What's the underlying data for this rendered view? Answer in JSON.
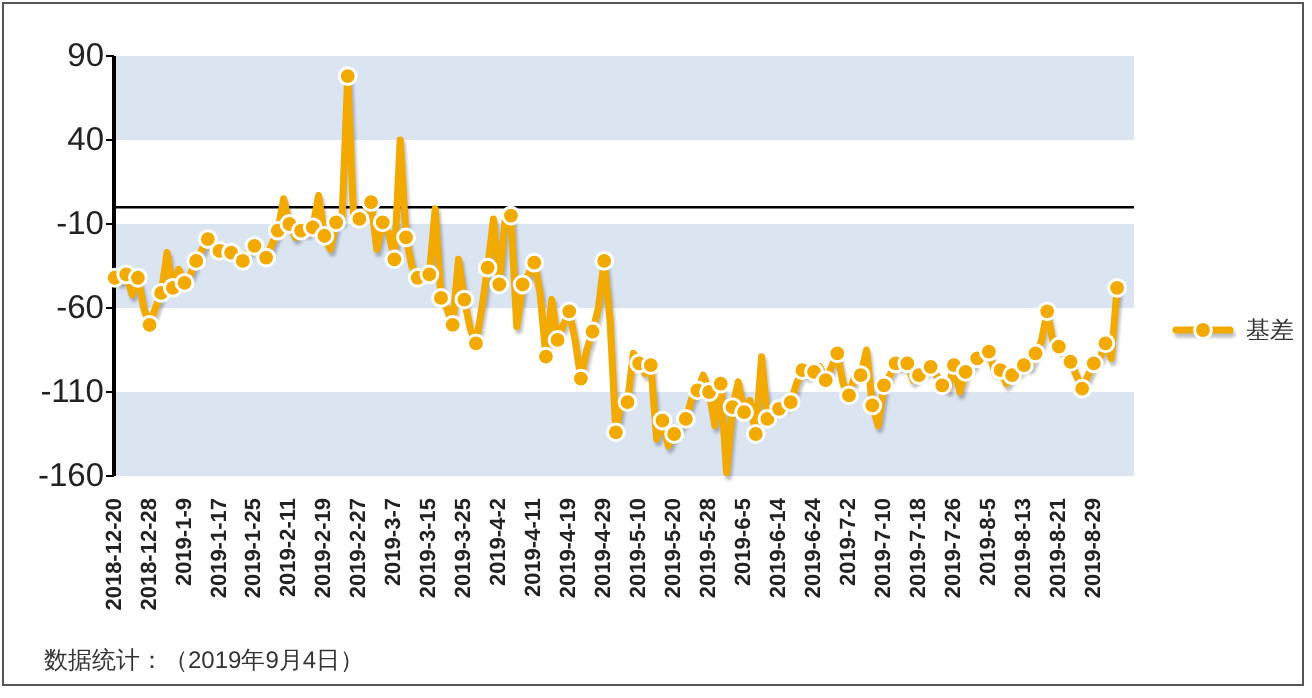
{
  "chart_data": {
    "type": "line",
    "categories": [
      "2018-12-20",
      null,
      null,
      null,
      null,
      null,
      "2018-12-28",
      null,
      null,
      null,
      null,
      null,
      "2019-1-9",
      null,
      null,
      null,
      null,
      null,
      "2019-1-17",
      null,
      null,
      null,
      null,
      null,
      "2019-1-25",
      null,
      null,
      null,
      null,
      null,
      "2019-2-11",
      null,
      null,
      null,
      null,
      null,
      "2019-2-19",
      null,
      null,
      null,
      null,
      null,
      "2019-2-27",
      null,
      null,
      null,
      null,
      null,
      "2019-3-7",
      null,
      null,
      null,
      null,
      null,
      "2019-3-15",
      null,
      null,
      null,
      null,
      null,
      "2019-3-25",
      null,
      null,
      null,
      null,
      null,
      "2019-4-2",
      null,
      null,
      null,
      null,
      null,
      "2019-4-11",
      null,
      null,
      null,
      null,
      null,
      "2019-4-19",
      null,
      null,
      null,
      null,
      null,
      "2019-4-29",
      null,
      null,
      null,
      null,
      null,
      "2019-5-10",
      null,
      null,
      null,
      null,
      null,
      "2019-5-20",
      null,
      null,
      null,
      null,
      null,
      "2019-5-28",
      null,
      null,
      null,
      null,
      null,
      "2019-6-5",
      null,
      null,
      null,
      null,
      null,
      "2019-6-14",
      null,
      null,
      null,
      null,
      null,
      "2019-6-24",
      null,
      null,
      null,
      null,
      null,
      "2019-7-2",
      null,
      null,
      null,
      null,
      null,
      "2019-7-10",
      null,
      null,
      null,
      null,
      null,
      "2019-7-18",
      null,
      null,
      null,
      null,
      null,
      "2019-7-26",
      null,
      null,
      null,
      null,
      null,
      "2019-8-5",
      null,
      null,
      null,
      null,
      null,
      "2019-8-13",
      null,
      null,
      null,
      null,
      null,
      "2019-8-21",
      null,
      null,
      null,
      null,
      null,
      "2019-8-29",
      null,
      null,
      null,
      null
    ],
    "series": [
      {
        "name": "基差",
        "color": "#f2a900",
        "values": [
          -42,
          -44,
          -40,
          -52,
          -42,
          -60,
          -70,
          -60,
          -51,
          -27,
          -48,
          -37,
          -45,
          -40,
          -32,
          -25,
          -19,
          -22,
          -26,
          -24,
          -27,
          -28,
          -32,
          -26,
          -23,
          -28,
          -30,
          -22,
          -14,
          5,
          -10,
          -18,
          -14,
          -15,
          -12,
          7,
          -17,
          -25,
          -9,
          -8,
          78,
          -6,
          -7,
          -3,
          3,
          -25,
          -9,
          -15,
          -31,
          40,
          -18,
          -35,
          -42,
          -38,
          -40,
          -1,
          -54,
          -60,
          -70,
          -31,
          -55,
          -72,
          -81,
          -60,
          -36,
          -7,
          -46,
          -7,
          -5,
          -71,
          -46,
          -40,
          -33,
          -51,
          -89,
          -55,
          -79,
          -70,
          -62,
          -79,
          -102,
          -85,
          -74,
          -60,
          -32,
          -67,
          -134,
          -114,
          -116,
          -87,
          -93,
          -99,
          -94,
          -138,
          -127,
          -142,
          -135,
          -130,
          -126,
          -114,
          -109,
          -100,
          -110,
          -130,
          -105,
          -158,
          -119,
          -104,
          -122,
          -115,
          -135,
          -89,
          -126,
          -120,
          -120,
          -118,
          -116,
          -105,
          -97,
          -100,
          -98,
          -95,
          -103,
          -95,
          -87,
          -105,
          -112,
          -100,
          -100,
          -85,
          -118,
          -130,
          -106,
          -100,
          -93,
          -95,
          -93,
          -103,
          -100,
          -98,
          -95,
          -100,
          -106,
          -108,
          -94,
          -110,
          -98,
          -95,
          -90,
          -88,
          -86,
          -98,
          -97,
          -105,
          -100,
          -98,
          -94,
          -95,
          -87,
          -80,
          -62,
          -80,
          -83,
          -88,
          -92,
          -100,
          -108,
          -100,
          -93,
          -90,
          -81,
          -90,
          -48
        ]
      },
      {
        "type": "scatter",
        "color": "#f2a900",
        "marker": "circle",
        "values": [
          -42,
          null,
          -40,
          null,
          -42,
          null,
          -70,
          null,
          -51,
          null,
          -48,
          null,
          -45,
          null,
          -32,
          null,
          -19,
          null,
          -26,
          null,
          -27,
          null,
          -32,
          null,
          -23,
          null,
          -30,
          null,
          -14,
          null,
          -10,
          null,
          -14,
          null,
          -12,
          null,
          -17,
          null,
          -9,
          null,
          78,
          null,
          -7,
          null,
          3,
          null,
          -9,
          null,
          -31,
          null,
          -18,
          null,
          -42,
          null,
          -40,
          null,
          -54,
          null,
          -70,
          null,
          -55,
          null,
          -81,
          null,
          -36,
          null,
          -46,
          null,
          -5,
          null,
          -46,
          null,
          -33,
          null,
          -89,
          null,
          -79,
          null,
          -62,
          null,
          -102,
          null,
          -74,
          null,
          -32,
          null,
          -134,
          null,
          -116,
          null,
          -93,
          null,
          -94,
          null,
          -127,
          null,
          -135,
          null,
          -126,
          null,
          -109,
          null,
          -110,
          null,
          -105,
          null,
          -119,
          null,
          -122,
          null,
          -135,
          null,
          -126,
          null,
          -120,
          null,
          -116,
          null,
          -97,
          null,
          -98,
          null,
          -103,
          null,
          -87,
          null,
          -112,
          null,
          -100,
          null,
          -118,
          null,
          -106,
          null,
          -93,
          null,
          -93,
          null,
          -100,
          null,
          -95,
          null,
          -106,
          null,
          -94,
          null,
          -98,
          null,
          -90,
          null,
          -86,
          null,
          -97,
          null,
          -100,
          null,
          -94,
          null,
          -87,
          null,
          -62,
          null,
          -83,
          null,
          -92,
          null,
          -108,
          null,
          -93,
          null,
          -81,
          null,
          -48
        ]
      }
    ],
    "ylim": [
      -160,
      90
    ],
    "yticks": [
      -160,
      -110,
      -60,
      -10,
      40,
      90
    ],
    "bands": [
      {
        "axis": "y",
        "from": 40,
        "to": 90,
        "color": "#dbe5f1"
      },
      {
        "axis": "y",
        "from": -60,
        "to": -10,
        "color": "#dbe5f1"
      },
      {
        "axis": "y",
        "from": -160,
        "to": -110,
        "color": "#dbe5f1"
      }
    ],
    "ref_lines": [
      {
        "axis": "y",
        "value": 0,
        "color": "#000000"
      }
    ],
    "legend": "right",
    "annotations": [
      "数据统计：（2019年9月4日）"
    ]
  }
}
